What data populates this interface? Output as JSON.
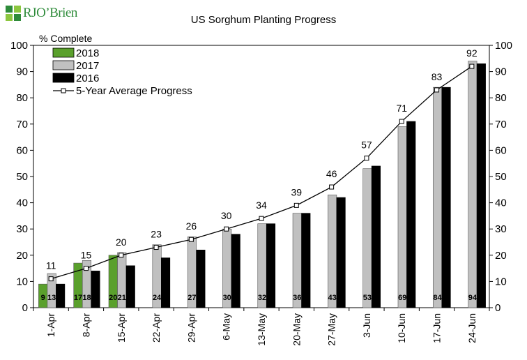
{
  "logo": {
    "text": "RJO’Brien"
  },
  "chart_data": {
    "type": "bar",
    "title": "US Sorghum Planting Progress",
    "ylabel": "% Complete",
    "xlabel": "",
    "ylim": [
      0,
      100
    ],
    "yticks": [
      0,
      10,
      20,
      30,
      40,
      50,
      60,
      70,
      80,
      90,
      100
    ],
    "secondary_y_axis": true,
    "grid": false,
    "legend_position": "top-left",
    "categories": [
      "1-Apr",
      "8-Apr",
      "15-Apr",
      "22-Apr",
      "29-Apr",
      "6-May",
      "13-May",
      "20-May",
      "27-May",
      "3-Jun",
      "10-Jun",
      "17-Jun",
      "24-Jun"
    ],
    "series": [
      {
        "name": "2018",
        "kind": "bar",
        "color": "#5aa02c",
        "values": [
          9,
          17,
          20,
          null,
          null,
          null,
          null,
          null,
          null,
          null,
          null,
          null,
          null
        ],
        "labels": [
          "9",
          "17",
          "20",
          null,
          null,
          null,
          null,
          null,
          null,
          null,
          null,
          null,
          null
        ]
      },
      {
        "name": "2017",
        "kind": "bar",
        "color": "#c0c0c0",
        "values": [
          13,
          18,
          21,
          24,
          27,
          30,
          32,
          36,
          43,
          53,
          69,
          84,
          94
        ],
        "labels": [
          "13",
          "18",
          "21",
          "24",
          "27",
          "30",
          "32",
          "36",
          "43",
          "53",
          "69",
          "84",
          "94"
        ]
      },
      {
        "name": "2016",
        "kind": "bar",
        "color": "#000000",
        "values": [
          9,
          14,
          16,
          19,
          22,
          28,
          32,
          36,
          42,
          54,
          71,
          84,
          93
        ],
        "labels": []
      },
      {
        "name": "5-Year Average Progress",
        "kind": "line",
        "color": "#000000",
        "values": [
          11,
          15,
          20,
          23,
          26,
          30,
          34,
          39,
          46,
          57,
          71,
          83,
          92
        ],
        "labels": [
          "11",
          "15",
          "20",
          "23",
          "26",
          "30",
          "34",
          "39",
          "46",
          "57",
          "71",
          "83",
          "92"
        ]
      }
    ]
  }
}
